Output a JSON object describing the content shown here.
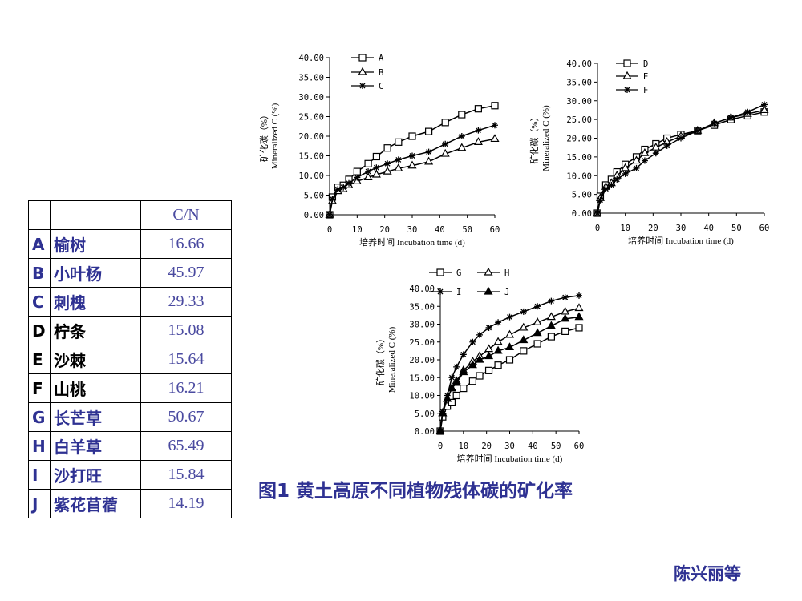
{
  "table": {
    "header": [
      "",
      "",
      "C/N"
    ],
    "rows": [
      [
        "A",
        "榆树",
        "16.66"
      ],
      [
        "B",
        "小叶杨",
        "45.97"
      ],
      [
        "C",
        "刺槐",
        "29.33"
      ],
      [
        "D",
        "柠条",
        "15.08"
      ],
      [
        "E",
        "沙棘",
        "15.64"
      ],
      [
        "F",
        "山桃",
        "16.21"
      ],
      [
        "G",
        "长芒草",
        "50.67"
      ],
      [
        "H",
        "白羊草",
        "65.49"
      ],
      [
        "I",
        "沙打旺",
        "15.84"
      ],
      [
        "J",
        "紫花苜蓿",
        "14.19"
      ]
    ]
  },
  "caption": "图1 黄土高原不同植物残体碳的矿化率",
  "author": "陈兴丽等",
  "chart_data": [
    {
      "type": "line",
      "y_label": [
        "矿化碳（%）",
        "Mineralized C (%)"
      ],
      "x_label": "培养时间 Incubation time (d)",
      "x": [
        0,
        1,
        3,
        5,
        7,
        10,
        14,
        17,
        21,
        25,
        30,
        36,
        42,
        48,
        54,
        60
      ],
      "xlim": [
        0,
        60
      ],
      "xticks": [
        0,
        10,
        20,
        30,
        40,
        50,
        60
      ],
      "ylim": [
        0,
        40
      ],
      "yticks": [
        {
          "value": 0,
          "label": "0.00"
        },
        {
          "value": 5,
          "label": "5.00"
        },
        {
          "value": 10,
          "label": "10.00"
        },
        {
          "value": 15,
          "label": "15.00"
        },
        {
          "value": 20,
          "label": "20.00"
        },
        {
          "value": 25,
          "label": "25.00"
        },
        {
          "value": 30,
          "label": "30.00"
        },
        {
          "value": 35,
          "label": "35.00"
        },
        {
          "value": 40,
          "label": "40.00"
        }
      ],
      "series": [
        {
          "name": "A",
          "color": "#000000",
          "marker": "square",
          "values": [
            0,
            4.5,
            7,
            7.5,
            9,
            11,
            13,
            14.8,
            17,
            18.5,
            20,
            21.2,
            23.5,
            25.5,
            27,
            27.8
          ]
        },
        {
          "name": "B",
          "color": "#000000",
          "marker": "triangle",
          "values": [
            0,
            3.5,
            6,
            6.5,
            7.5,
            8.5,
            9.5,
            10.2,
            11,
            11.8,
            12.5,
            13.5,
            15.5,
            17,
            18.5,
            19.3
          ]
        },
        {
          "name": "C",
          "color": "#000000",
          "marker": "star",
          "values": [
            0,
            4,
            6.5,
            7,
            8,
            9.5,
            11,
            12,
            13,
            14,
            15,
            16,
            18,
            20,
            21.5,
            22.8
          ]
        }
      ]
    },
    {
      "type": "line",
      "y_label": [
        "矿化碳（%）",
        "Mineralized C (%)"
      ],
      "x_label": "培养时间 Incubation time (d)",
      "x": [
        0,
        1,
        3,
        5,
        7,
        10,
        14,
        17,
        21,
        25,
        30,
        36,
        42,
        48,
        54,
        60
      ],
      "xlim": [
        0,
        60
      ],
      "xticks": [
        0,
        10,
        20,
        30,
        40,
        50,
        60
      ],
      "ylim": [
        0,
        40
      ],
      "yticks": [
        {
          "value": 0,
          "label": "0.00"
        },
        {
          "value": 5,
          "label": "5.00"
        },
        {
          "value": 10,
          "label": "10.00"
        },
        {
          "value": 15,
          "label": "15.00"
        },
        {
          "value": 20,
          "label": "20.00"
        },
        {
          "value": 25,
          "label": "25.00"
        },
        {
          "value": 30,
          "label": "30.00"
        },
        {
          "value": 35,
          "label": "35.00"
        },
        {
          "value": 40,
          "label": "40.00"
        }
      ],
      "series": [
        {
          "name": "D",
          "color": "#000000",
          "marker": "square",
          "values": [
            0,
            4.5,
            7.5,
            9,
            11,
            13,
            15,
            17,
            18.5,
            20,
            21,
            22,
            23.5,
            25,
            26,
            27
          ]
        },
        {
          "name": "E",
          "color": "#000000",
          "marker": "triangle",
          "values": [
            0,
            4,
            7,
            8,
            10,
            12,
            14,
            16,
            17.5,
            19,
            20.5,
            22,
            24,
            25.5,
            26.5,
            27.5
          ]
        },
        {
          "name": "F",
          "color": "#000000",
          "marker": "star",
          "values": [
            0,
            3.5,
            6.5,
            7.5,
            9,
            10.5,
            12,
            14,
            16,
            18,
            20,
            22,
            24,
            25.5,
            27,
            29
          ]
        }
      ]
    },
    {
      "type": "line",
      "y_label": [
        "矿化碳（%）",
        "Mineralized C (%)"
      ],
      "x_label": "培养时间 Incubation time (d)",
      "x": [
        0,
        1,
        3,
        5,
        7,
        10,
        14,
        17,
        21,
        25,
        30,
        36,
        42,
        48,
        54,
        60
      ],
      "xlim": [
        0,
        60
      ],
      "xticks": [
        0,
        10,
        20,
        30,
        40,
        50,
        60
      ],
      "ylim": [
        0,
        40
      ],
      "yticks": [
        {
          "value": 0,
          "label": "0.00"
        },
        {
          "value": 5,
          "label": "5.00"
        },
        {
          "value": 10,
          "label": "10.00"
        },
        {
          "value": 15,
          "label": "15.00"
        },
        {
          "value": 20,
          "label": "20.00"
        },
        {
          "value": 25,
          "label": "25.00"
        },
        {
          "value": 30,
          "label": "30.00"
        },
        {
          "value": 35,
          "label": "35.00"
        },
        {
          "value": 40,
          "label": "40.00"
        }
      ],
      "series": [
        {
          "name": "G",
          "color": "#000000",
          "marker": "square",
          "values": [
            0,
            4,
            7,
            8,
            10,
            12,
            14,
            15.5,
            17,
            18.5,
            20,
            22.5,
            24.5,
            26.5,
            28,
            29
          ]
        },
        {
          "name": "H",
          "color": "#000000",
          "marker": "triangle",
          "values": [
            0,
            5,
            9,
            12,
            14,
            17,
            19.5,
            21,
            23,
            25,
            27,
            29,
            30.5,
            32,
            33.5,
            34.5
          ]
        },
        {
          "name": "I",
          "color": "#000000",
          "marker": "star",
          "values": [
            0,
            5.5,
            10,
            15,
            18,
            21.5,
            25,
            27,
            29,
            30.5,
            32,
            33.5,
            35,
            36.5,
            37.5,
            38
          ]
        },
        {
          "name": "J",
          "color": "#000000",
          "marker": "triangle-filled",
          "values": [
            0,
            5,
            9,
            12,
            13.5,
            16.5,
            18.5,
            20,
            21,
            22.5,
            23.5,
            25.5,
            27.5,
            29.5,
            31.5,
            32
          ]
        }
      ]
    }
  ]
}
